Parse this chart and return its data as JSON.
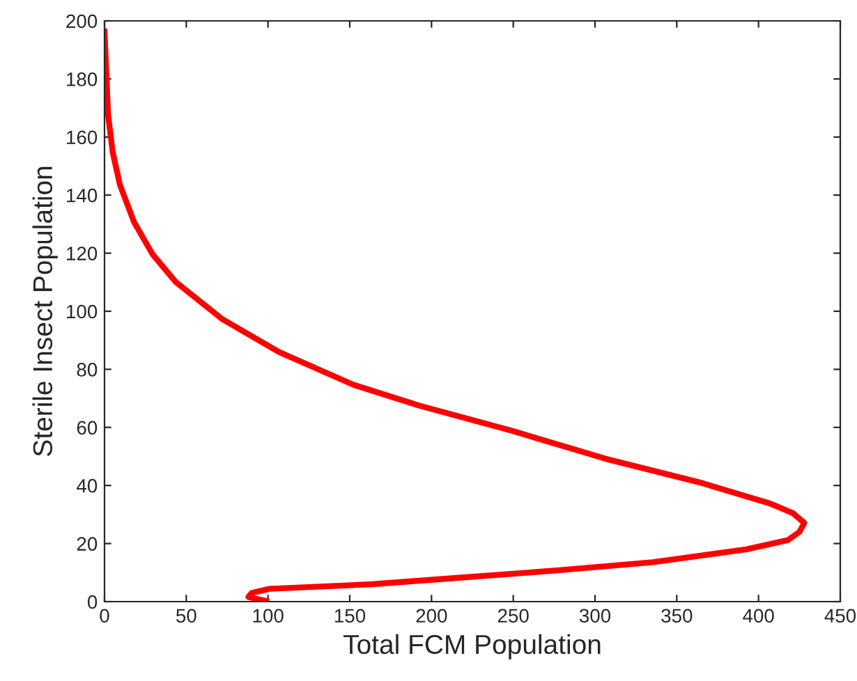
{
  "chart_data": {
    "type": "line",
    "xlabel": "Total FCM Population",
    "ylabel": "Sterile Insect Population",
    "xlim": [
      0,
      450
    ],
    "ylim": [
      0,
      200
    ],
    "xticks": [
      0,
      50,
      100,
      150,
      200,
      250,
      300,
      350,
      400,
      450
    ],
    "yticks": [
      0,
      20,
      40,
      60,
      80,
      100,
      120,
      140,
      160,
      180,
      200
    ],
    "grid": false,
    "legend": false,
    "marker": "none",
    "line_style": "solid",
    "series": [
      {
        "color": "#ff0000",
        "x": [
          0,
          2.2,
          5,
          9.4,
          18,
          29.4,
          43.7,
          72.3,
          106.6,
          152.2,
          192.5,
          249.4,
          306.5,
          363.7,
          406.6,
          421,
          428,
          425,
          418,
          392.6,
          335.4,
          278,
          220.8,
          163.6,
          100.8,
          90,
          88,
          99
        ],
        "values": [
          196.4,
          167.6,
          154.8,
          143.6,
          130.8,
          119.6,
          110,
          97.2,
          86,
          74.7,
          67.5,
          58.8,
          49.2,
          41.1,
          33.9,
          30.5,
          27.1,
          24,
          21.2,
          18,
          13.6,
          10.8,
          8.4,
          6,
          4.4,
          3,
          1.6,
          0.2
        ]
      }
    ]
  }
}
